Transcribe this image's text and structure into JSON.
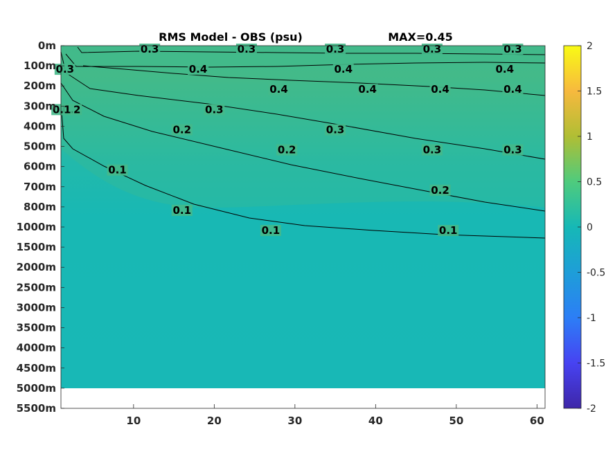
{
  "chart_data": {
    "type": "heatmap",
    "title": "RMS Model - OBS (psu)",
    "annotation": "MAX=0.45",
    "x_ticks": [
      "10",
      "20",
      "30",
      "40",
      "50",
      "60"
    ],
    "x_tick_values": [
      10,
      20,
      30,
      40,
      50,
      60
    ],
    "xlim": [
      1,
      61
    ],
    "y_ticks": [
      "0m",
      "100m",
      "200m",
      "300m",
      "400m",
      "500m",
      "600m",
      "700m",
      "800m",
      "1000m",
      "1500m",
      "2000m",
      "2500m",
      "3000m",
      "3500m",
      "4000m",
      "4500m",
      "5000m",
      "5500m"
    ],
    "colorbar": {
      "ticks": [
        "2",
        "1.5",
        "1",
        "0.5",
        "0",
        "-0.5",
        "-1",
        "-1.5",
        "-2"
      ],
      "tick_values": [
        2,
        1.5,
        1,
        0.5,
        0,
        -0.5,
        -1,
        -1.5,
        -2
      ],
      "clim": [
        -2,
        2
      ],
      "colormap": "parula"
    },
    "contour_levels": [
      0.1,
      0.2,
      0.3,
      0.4
    ],
    "contour_labels": [
      {
        "text": "0.3",
        "x": 1.5,
        "y": "100m"
      },
      {
        "text": "0.3",
        "x": 12,
        "y": "0m"
      },
      {
        "text": "0.3",
        "x": 24,
        "y": "0m"
      },
      {
        "text": "0.3",
        "x": 35,
        "y": "0m"
      },
      {
        "text": "0.3",
        "x": 47,
        "y": "0m"
      },
      {
        "text": "0.3",
        "x": 57,
        "y": "0m"
      },
      {
        "text": "0.4",
        "x": 18,
        "y": "100m"
      },
      {
        "text": "0.4",
        "x": 36,
        "y": "100m"
      },
      {
        "text": "0.4",
        "x": 56,
        "y": "100m"
      },
      {
        "text": "0.4",
        "x": 28,
        "y": "200m"
      },
      {
        "text": "0.4",
        "x": 39,
        "y": "200m"
      },
      {
        "text": "0.4",
        "x": 48,
        "y": "200m"
      },
      {
        "text": "0.4",
        "x": 57,
        "y": "200m"
      },
      {
        "text": "0.2",
        "x": 2.3,
        "y": "300m"
      },
      {
        "text": "0.1",
        "x": 1.1,
        "y": "300m"
      },
      {
        "text": "0.3",
        "x": 20,
        "y": "300m"
      },
      {
        "text": "0.3",
        "x": 35,
        "y": "400m"
      },
      {
        "text": "0.3",
        "x": 47,
        "y": "500m"
      },
      {
        "text": "0.3",
        "x": 57,
        "y": "500m"
      },
      {
        "text": "0.2",
        "x": 16,
        "y": "400m"
      },
      {
        "text": "0.2",
        "x": 29,
        "y": "500m"
      },
      {
        "text": "0.2",
        "x": 48,
        "y": "700m"
      },
      {
        "text": "0.1",
        "x": 8,
        "y": "600m"
      },
      {
        "text": "0.1",
        "x": 16,
        "y": "800m"
      },
      {
        "text": "0.1",
        "x": 27,
        "y": "1000m"
      },
      {
        "text": "0.1",
        "x": 49,
        "y": "1000m"
      }
    ],
    "max_depth_with_data": "5000m",
    "grid": false
  }
}
